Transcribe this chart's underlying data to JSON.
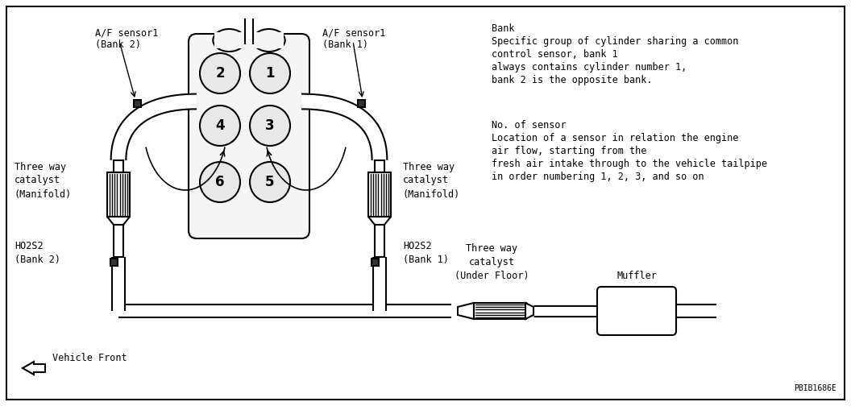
{
  "bg_color": "#ffffff",
  "border_color": "#000000",
  "annotation_id": "PBIB1686E",
  "bank_text_line1": "Bank",
  "bank_text_line2": "Specific group of cylinder sharing a common",
  "bank_text_line3": "control sensor, bank 1",
  "bank_text_line4": "always contains cylinder number 1,",
  "bank_text_line5": "bank 2 is the opposite bank.",
  "sensor_text_line1": "No. of sensor",
  "sensor_text_line2": "Location of a sensor in relation the engine",
  "sensor_text_line3": "air flow, starting from the",
  "sensor_text_line4": "fresh air intake through to the vehicle tailpipe",
  "sensor_text_line5": "in order numbering 1, 2, 3, and so on",
  "label_af2": "A/F sensor1\n(Bank 2)",
  "label_af1": "A/F sensor1\n(Bank 1)",
  "label_twc_left": "Three way\ncatalyst\n(Manifold)",
  "label_twc_right": "Three way\ncatalyst\n(Manifold)",
  "label_ho2s2_left": "HO2S2\n(Bank 2)",
  "label_ho2s2_right": "HO2S2\n(Bank 1)",
  "label_twc_floor": "Three way\ncatalyst\n(Under Floor)",
  "label_muffler": "Muffler",
  "label_vfront": "Vehicle Front"
}
